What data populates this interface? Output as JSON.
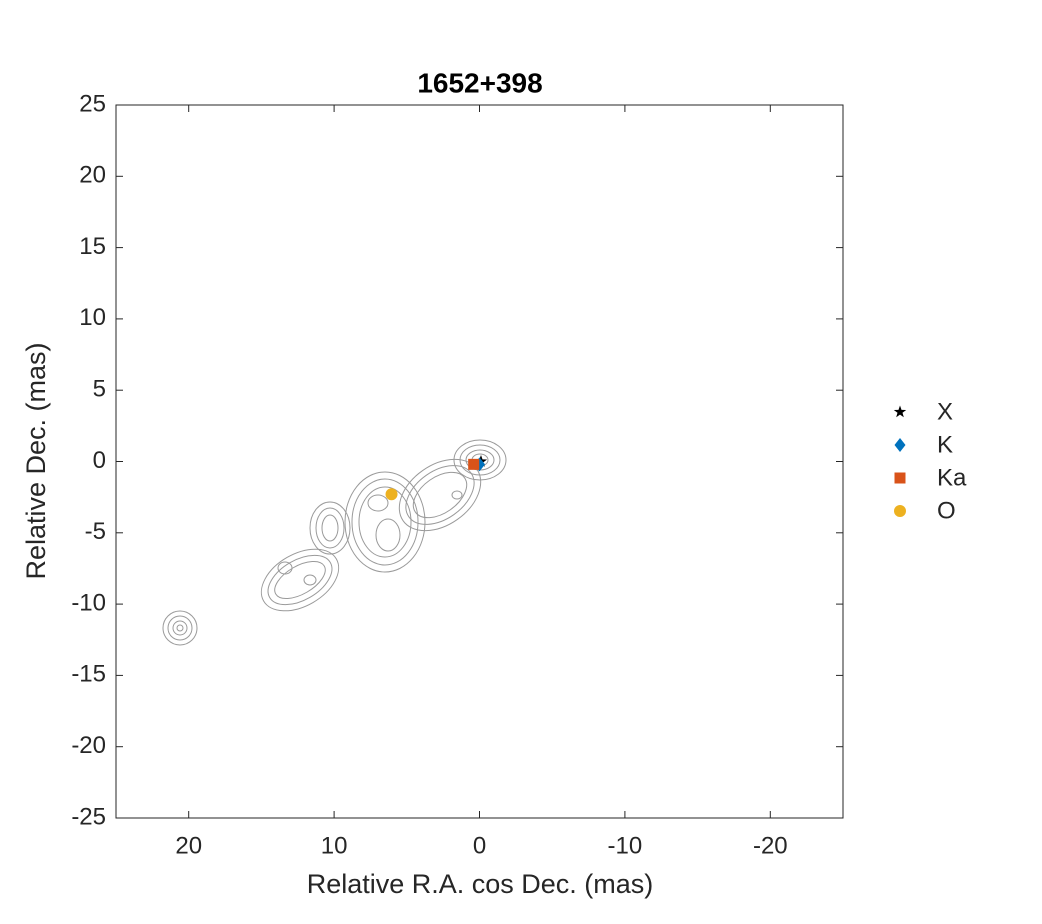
{
  "chart_data": {
    "type": "scatter",
    "title": "1652+398",
    "xlabel": "Relative R.A. cos Dec. (mas)",
    "ylabel": "Relative Dec. (mas)",
    "xlim": [
      25,
      -25
    ],
    "ylim": [
      -25,
      25
    ],
    "xticks": [
      20,
      10,
      0,
      -10,
      -20
    ],
    "yticks": [
      -25,
      -20,
      -15,
      -10,
      -5,
      0,
      5,
      10,
      15,
      20,
      25
    ],
    "grid": false,
    "legend": "right",
    "series": [
      {
        "name": "X",
        "color": "#000000",
        "marker": "star",
        "x": [
          -0.1
        ],
        "y": [
          0.0
        ]
      },
      {
        "name": "K",
        "color": "#0072bd",
        "marker": "diamond",
        "x": [
          0.0
        ],
        "y": [
          -0.2
        ]
      },
      {
        "name": "Ka",
        "color": "#d95319",
        "marker": "square",
        "x": [
          0.4
        ],
        "y": [
          -0.2
        ]
      },
      {
        "name": "O",
        "color": "#edb120",
        "marker": "circle",
        "x": [
          6.05
        ],
        "y": [
          -2.3
        ]
      }
    ]
  }
}
